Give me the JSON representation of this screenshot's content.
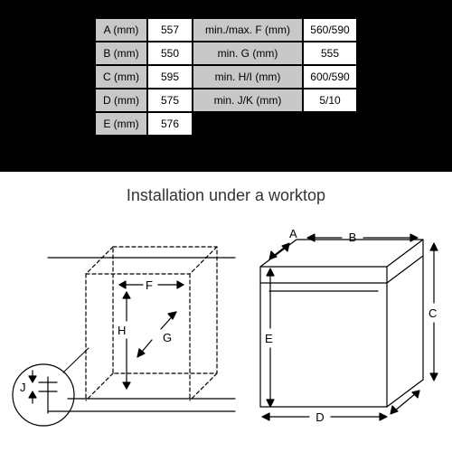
{
  "caption": "Installation under a worktop",
  "table": {
    "label_bg": "#c8c8c8",
    "value_bg": "#ffffff",
    "border_color": "#000000",
    "font_size": 12,
    "left": [
      {
        "label": "A (mm)",
        "value": "557"
      },
      {
        "label": "B (mm)",
        "value": "550"
      },
      {
        "label": "C (mm)",
        "value": "595"
      },
      {
        "label": "D (mm)",
        "value": "575"
      },
      {
        "label": "E (mm)",
        "value": "576"
      }
    ],
    "right": [
      {
        "label": "min./max. F (mm)",
        "value": "560/590"
      },
      {
        "label": "min. G (mm)",
        "value": "555"
      },
      {
        "label": "min. H/I (mm)",
        "value": "600/590"
      },
      {
        "label": "min. J/K (mm)",
        "value": "5/10"
      }
    ],
    "col_widths": {
      "left_label": 58,
      "left_value": 50,
      "right_label": 122,
      "right_value": 60
    }
  },
  "diagram": {
    "type": "infographic",
    "stroke": "#000000",
    "stroke_width": 1.2,
    "background_color": "#ffffff",
    "labels": [
      "A",
      "B",
      "C",
      "D",
      "E",
      "F",
      "G",
      "H",
      "J"
    ],
    "font_size": 13
  }
}
